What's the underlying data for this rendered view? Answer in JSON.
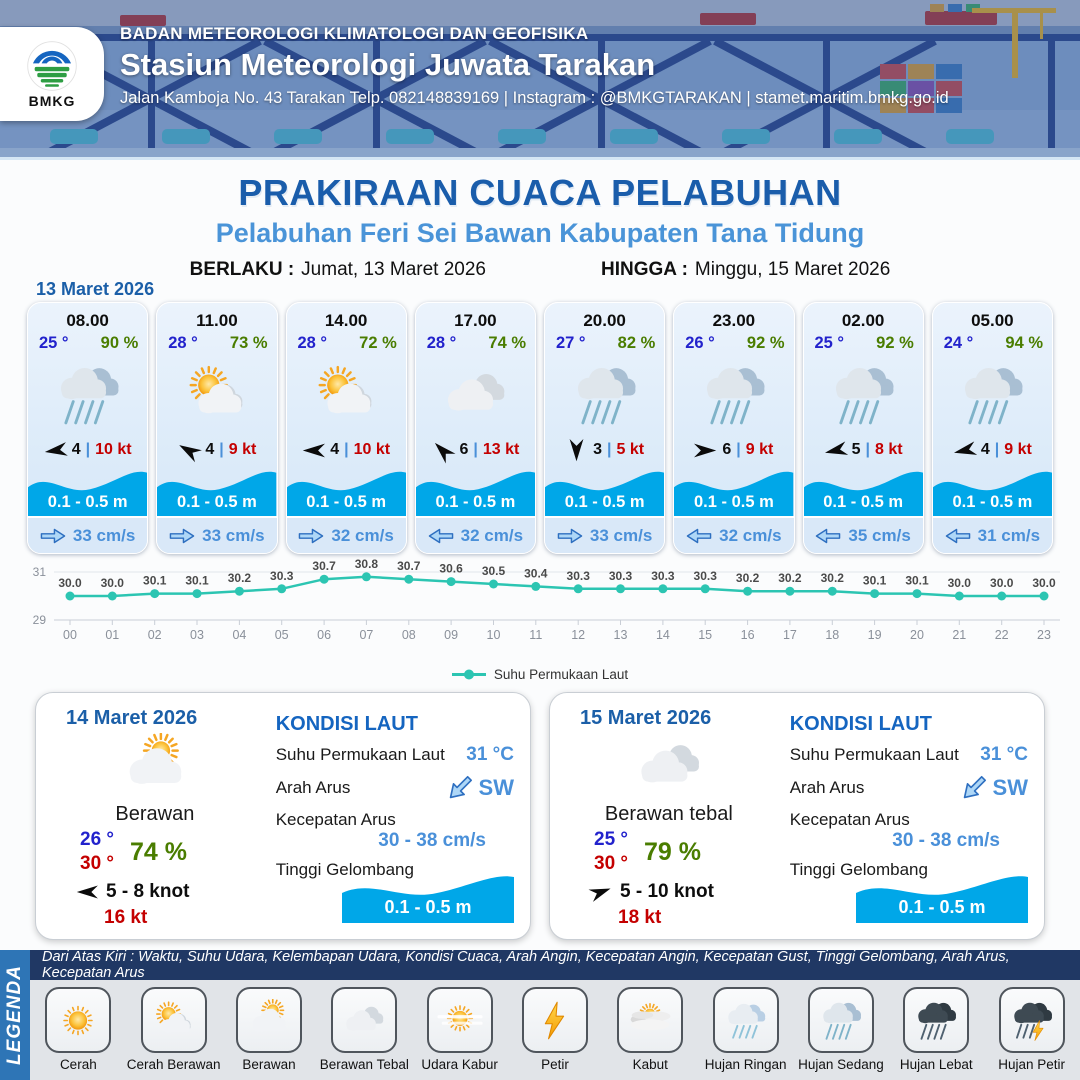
{
  "header": {
    "agency": "BADAN METEOROLOGI KLIMATOLOGI DAN GEOFISIKA",
    "station": "Stasiun Meteorologi Juwata Tarakan",
    "contact": "Jalan Kamboja No. 43 Tarakan  Telp. 082148839169 | Instagram : @BMKGTARAKAN | stamet.maritim.bmkg.go.id",
    "logo_text": "BMKG"
  },
  "title": {
    "main": "PRAKIRAAN CUACA PELABUHAN",
    "subtitle": "Pelabuhan Feri Sei Bawan Kabupaten Tana Tidung",
    "valid_label": "BERLAKU :",
    "valid_value": "Jumat, 13 Maret 2026",
    "until_label": "HINGGA :",
    "until_value": "Minggu, 15 Maret 2026",
    "date_label": "13 Maret 2026"
  },
  "cards": [
    {
      "time": "08.00",
      "temp": "25 °",
      "humidity": "90 %",
      "icon": "hujan-sedang",
      "wind_rot": -8,
      "wind_speed": "4",
      "gust": "10 kt",
      "wave": "0.1 - 0.5 m",
      "current_dir": "right",
      "current": "33 cm/s"
    },
    {
      "time": "11.00",
      "temp": "28 °",
      "humidity": "73 %",
      "icon": "cerah-berawan",
      "wind_rot": 30,
      "wind_speed": "4",
      "gust": "9 kt",
      "wave": "0.1 - 0.5 m",
      "current_dir": "right",
      "current": "33 cm/s"
    },
    {
      "time": "14.00",
      "temp": "28 °",
      "humidity": "72 %",
      "icon": "cerah-berawan",
      "wind_rot": 0,
      "wind_speed": "4",
      "gust": "10 kt",
      "wave": "0.1 - 0.5 m",
      "current_dir": "right",
      "current": "32 cm/s"
    },
    {
      "time": "17.00",
      "temp": "28 °",
      "humidity": "74 %",
      "icon": "berawan-tebal",
      "wind_rot": 45,
      "wind_speed": "6",
      "gust": "13 kt",
      "wave": "0.1 - 0.5 m",
      "current_dir": "left",
      "current": "32 cm/s"
    },
    {
      "time": "20.00",
      "temp": "27 °",
      "humidity": "82 %",
      "icon": "hujan-sedang",
      "wind_rot": -90,
      "wind_speed": "3",
      "gust": "5 kt",
      "wave": "0.1 - 0.5 m",
      "current_dir": "right",
      "current": "33 cm/s"
    },
    {
      "time": "23.00",
      "temp": "26 °",
      "humidity": "92 %",
      "icon": "hujan-sedang",
      "wind_rot": 180,
      "wind_speed": "6",
      "gust": "9 kt",
      "wave": "0.1 - 0.5 m",
      "current_dir": "left",
      "current": "32 cm/s"
    },
    {
      "time": "02.00",
      "temp": "25 °",
      "humidity": "92 %",
      "icon": "hujan-sedang",
      "wind_rot": -12,
      "wind_speed": "5",
      "gust": "8 kt",
      "wave": "0.1 - 0.5 m",
      "current_dir": "left",
      "current": "35 cm/s"
    },
    {
      "time": "05.00",
      "temp": "24 °",
      "humidity": "94 %",
      "icon": "hujan-sedang",
      "wind_rot": -12,
      "wind_speed": "4",
      "gust": "9 kt",
      "wave": "0.1 - 0.5 m",
      "current_dir": "left",
      "current": "31 cm/s"
    }
  ],
  "chart_data": {
    "type": "line",
    "legend": "Suhu Permukaan Laut",
    "x": [
      "00",
      "01",
      "02",
      "03",
      "04",
      "05",
      "06",
      "07",
      "08",
      "09",
      "10",
      "11",
      "12",
      "13",
      "14",
      "15",
      "16",
      "17",
      "18",
      "19",
      "20",
      "21",
      "22",
      "23"
    ],
    "values": [
      30.0,
      30.0,
      30.1,
      30.1,
      30.2,
      30.3,
      30.7,
      30.8,
      30.7,
      30.6,
      30.5,
      30.4,
      30.3,
      30.3,
      30.3,
      30.3,
      30.2,
      30.2,
      30.2,
      30.1,
      30.1,
      30.0,
      30.0,
      30.0
    ],
    "ylim": [
      29,
      31
    ],
    "yticks": [
      29,
      31
    ],
    "line_color": "#2cc5b2",
    "grid": true,
    "legend_position": "bottom"
  },
  "days": [
    {
      "date": "14 Maret 2026",
      "condition": "Berawan",
      "icon": "berawan",
      "temp_min": "26 °",
      "temp_max": "30 °",
      "humidity": "74 %",
      "wind_rot": 0,
      "wind_range": "5 - 8 knot",
      "gust": "16 kt",
      "sea": {
        "title": "KONDISI LAUT",
        "sst_label": "Suhu Permukaan Laut",
        "sst": "31 °C",
        "current_dir_label": "Arah Arus",
        "current_dir": "SW",
        "current_speed_label": "Kecepatan Arus",
        "current_speed": "30 - 38 cm/s",
        "wave_label": "Tinggi Gelombang",
        "wave": "0.1 - 0.5 m"
      }
    },
    {
      "date": "15 Maret 2026",
      "condition": "Berawan tebal",
      "icon": "berawan-tebal",
      "temp_min": "25 °",
      "temp_max": "30 °",
      "humidity": "79 %",
      "wind_rot": 160,
      "wind_range": "5 - 10 knot",
      "gust": "18 kt",
      "sea": {
        "title": "KONDISI LAUT",
        "sst_label": "Suhu Permukaan Laut",
        "sst": "31 °C",
        "current_dir_label": "Arah Arus",
        "current_dir": "SW",
        "current_speed_label": "Kecepatan Arus",
        "current_speed": "30 - 38 cm/s",
        "wave_label": "Tinggi Gelombang",
        "wave": "0.1 - 0.5 m"
      }
    }
  ],
  "legend": {
    "sidebar": "LEGENDA",
    "header": "Dari Atas Kiri : Waktu, Suhu Udara, Kelembapan Udara, Kondisi Cuaca, Arah Angin, Kecepatan Angin, Kecepatan Gust, Tinggi Gelombang, Arah Arus, Kecepatan Arus",
    "items": [
      {
        "label": "Cerah",
        "icon": "cerah"
      },
      {
        "label": "Cerah Berawan",
        "icon": "cerah-berawan"
      },
      {
        "label": "Berawan",
        "icon": "berawan"
      },
      {
        "label": "Berawan Tebal",
        "icon": "berawan-tebal"
      },
      {
        "label": "Udara Kabur",
        "icon": "udara-kabur"
      },
      {
        "label": "Petir",
        "icon": "petir"
      },
      {
        "label": "Kabut",
        "icon": "kabut"
      },
      {
        "label": "Hujan Ringan",
        "icon": "hujan-ringan"
      },
      {
        "label": "Hujan Sedang",
        "icon": "hujan-sedang"
      },
      {
        "label": "Hujan Lebat",
        "icon": "hujan-lebat"
      },
      {
        "label": "Hujan Petir",
        "icon": "hujan-petir"
      }
    ]
  },
  "colors": {
    "accent_dark_blue": "#1a5dab",
    "accent_blue": "#4a90d9",
    "temp_blue": "#2222cc",
    "humidity_green": "#4a7d00",
    "gust_red": "#c40000",
    "wave_blue": "#00a7e8",
    "chart_teal": "#2cc5b2",
    "legend_banner_navy": "#203864",
    "legend_sidebar_blue": "#2e75b6",
    "header_navy": "#2b4a8c"
  }
}
